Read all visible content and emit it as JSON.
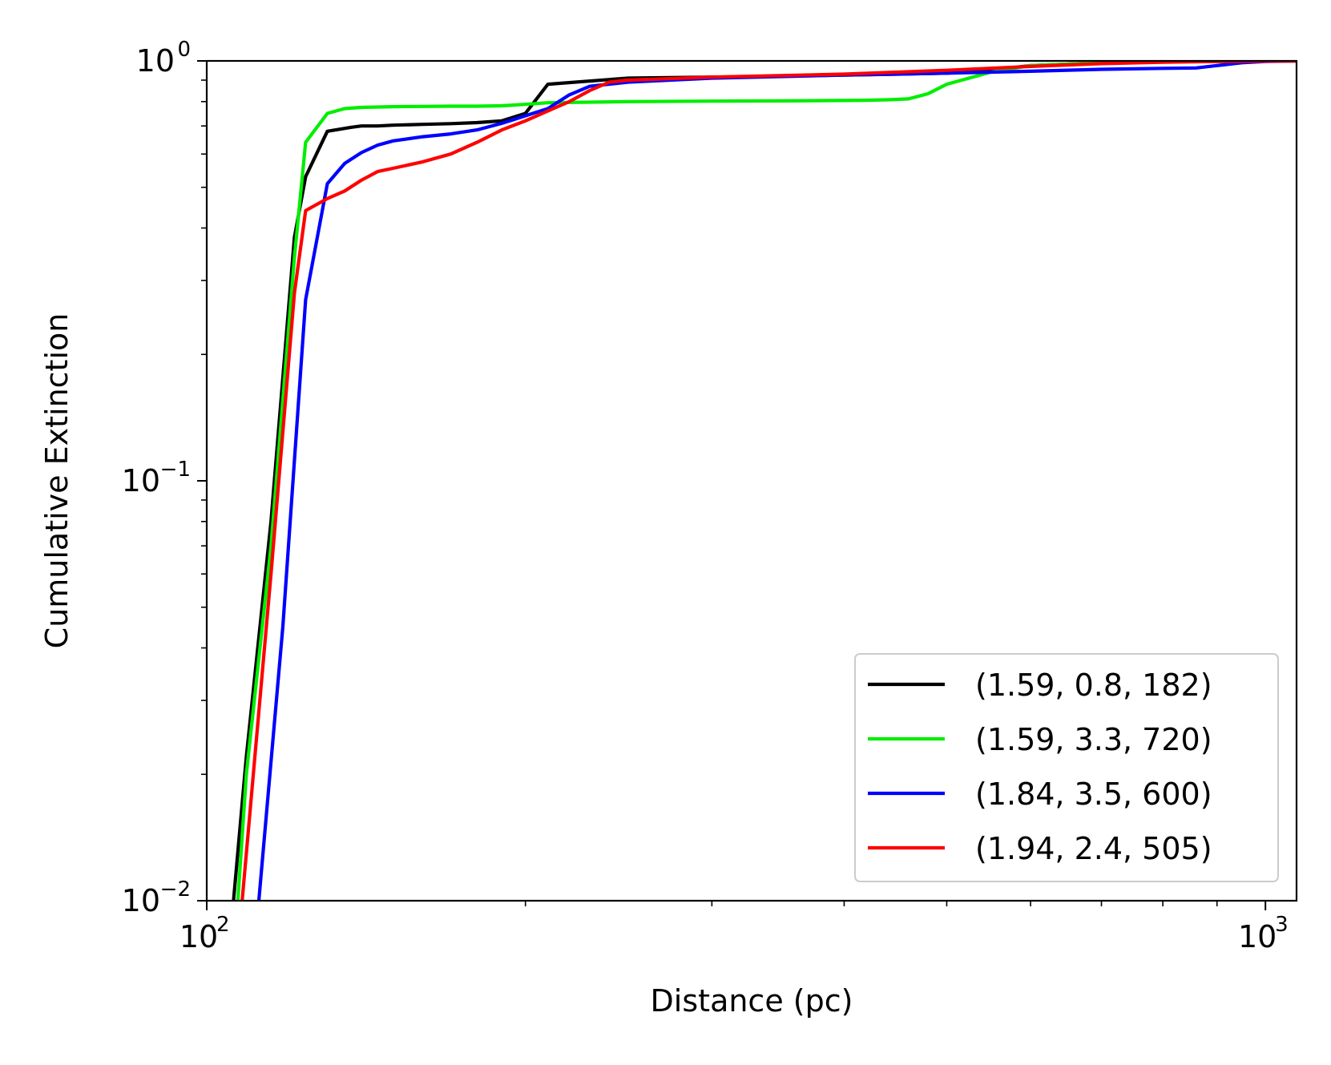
{
  "chart_data": {
    "type": "line",
    "title": "",
    "xlabel": "Distance (pc)",
    "ylabel": "Cumulative Extinction",
    "xscale": "log",
    "yscale": "log",
    "xlim": [
      100,
      1070
    ],
    "ylim": [
      0.01,
      1.0
    ],
    "x_ticks": [
      {
        "value": 100,
        "base": "10",
        "exp": "2"
      },
      {
        "value": 1000,
        "base": "10",
        "exp": "3"
      }
    ],
    "y_ticks": [
      {
        "value": 0.01,
        "base": "10",
        "exp": "−2"
      },
      {
        "value": 0.1,
        "base": "10",
        "exp": "−1"
      },
      {
        "value": 1.0,
        "base": "10",
        "exp": "0"
      }
    ],
    "grid": false,
    "legend_position": "lower-right",
    "series": [
      {
        "name": "(1.59, 0.8, 182)",
        "color": "#000000",
        "x": [
          106,
          109,
          115,
          121,
          124,
          130,
          137,
          140,
          145,
          150,
          160,
          170,
          180,
          190,
          200,
          210,
          250,
          300,
          350,
          400,
          450,
          500,
          550,
          600,
          700,
          800,
          900,
          1000,
          1070
        ],
        "y": [
          0.01,
          0.022,
          0.08,
          0.38,
          0.53,
          0.68,
          0.695,
          0.7,
          0.7,
          0.703,
          0.706,
          0.709,
          0.713,
          0.72,
          0.75,
          0.88,
          0.91,
          0.915,
          0.92,
          0.925,
          0.93,
          0.935,
          0.95,
          0.975,
          0.99,
          0.995,
          0.997,
          0.999,
          1.0
        ]
      },
      {
        "name": "(1.59, 3.3, 720)",
        "color": "#00ee00",
        "x": [
          107,
          109,
          115,
          121,
          124,
          130,
          135,
          140,
          150,
          160,
          170,
          180,
          190,
          200,
          210,
          250,
          300,
          350,
          400,
          420,
          440,
          460,
          480,
          500,
          550,
          600,
          700,
          800,
          900,
          1000,
          1070
        ],
        "y": [
          0.01,
          0.02,
          0.07,
          0.34,
          0.64,
          0.75,
          0.77,
          0.775,
          0.778,
          0.779,
          0.78,
          0.78,
          0.782,
          0.788,
          0.795,
          0.8,
          0.802,
          0.803,
          0.805,
          0.806,
          0.808,
          0.812,
          0.835,
          0.88,
          0.94,
          0.975,
          0.99,
          0.995,
          0.997,
          0.999,
          1.0
        ]
      },
      {
        "name": "(1.84, 3.5, 600)",
        "color": "#0000ff",
        "x": [
          112,
          118,
          124,
          130,
          135,
          140,
          145,
          150,
          160,
          170,
          180,
          190,
          200,
          210,
          220,
          230,
          250,
          300,
          400,
          500,
          600,
          700,
          800,
          860,
          900,
          950,
          1000,
          1070
        ],
        "y": [
          0.01,
          0.045,
          0.27,
          0.51,
          0.57,
          0.605,
          0.63,
          0.645,
          0.66,
          0.67,
          0.685,
          0.71,
          0.74,
          0.77,
          0.83,
          0.87,
          0.89,
          0.91,
          0.925,
          0.935,
          0.945,
          0.955,
          0.96,
          0.962,
          0.975,
          0.99,
          0.997,
          1.0
        ]
      },
      {
        "name": "(1.94, 2.4, 505)",
        "color": "#ff0000",
        "x": [
          108,
          115,
          121,
          124,
          130,
          135,
          140,
          145,
          150,
          160,
          170,
          180,
          190,
          200,
          210,
          220,
          230,
          240,
          250,
          300,
          400,
          500,
          600,
          700,
          800,
          900,
          1000,
          1070
        ],
        "y": [
          0.01,
          0.06,
          0.28,
          0.44,
          0.47,
          0.49,
          0.52,
          0.545,
          0.555,
          0.575,
          0.6,
          0.64,
          0.685,
          0.72,
          0.76,
          0.8,
          0.85,
          0.89,
          0.9,
          0.915,
          0.93,
          0.95,
          0.97,
          0.985,
          0.993,
          0.997,
          0.999,
          1.0
        ]
      }
    ]
  }
}
